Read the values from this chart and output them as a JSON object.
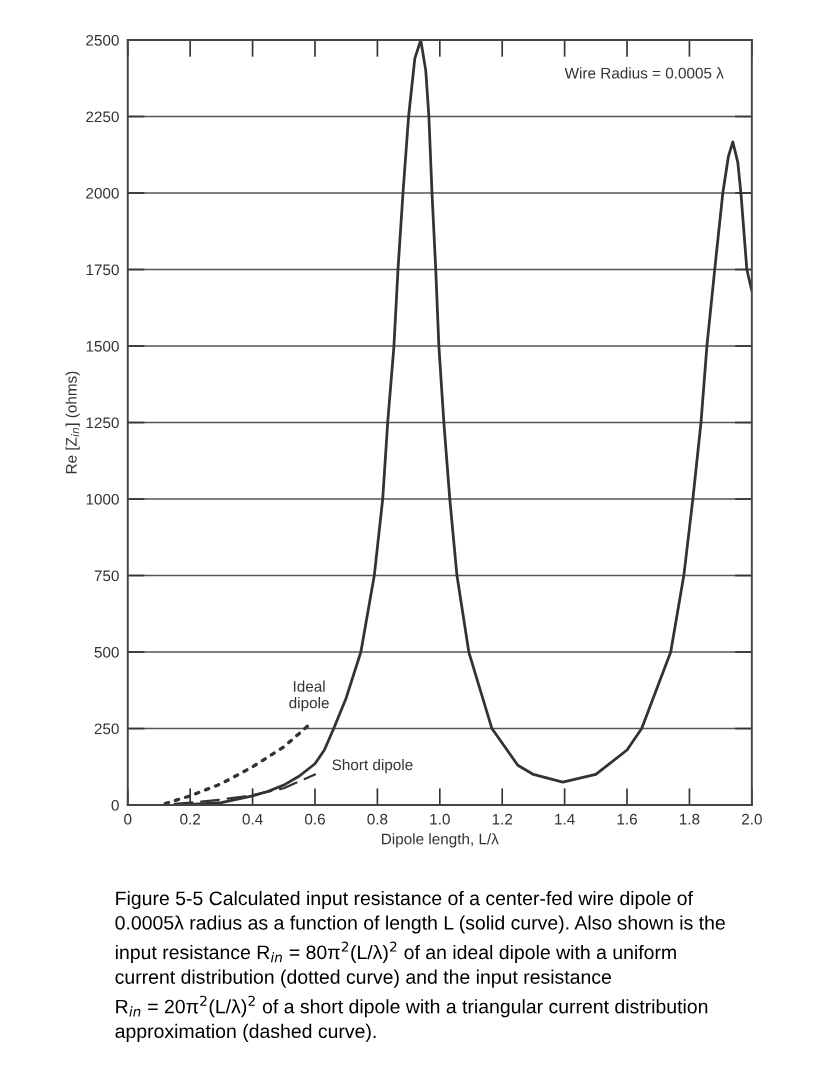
{
  "chart_data": {
    "type": "line",
    "xlabel": "Dipole length, L/λ",
    "ylabel": "Re [Z$_{in}$] (ohms)",
    "xlim": [
      0,
      2.0
    ],
    "xticks": [
      0,
      0.2,
      0.4,
      0.6,
      0.8,
      {
        "value": 1.0,
        "label": "1.0"
      },
      1.2,
      1.4,
      1.6,
      1.8,
      {
        "value": 2.0,
        "label": "2.0"
      }
    ],
    "ylim": [
      0,
      2500
    ],
    "yticks": [
      0,
      250,
      500,
      750,
      1000,
      1250,
      1500,
      1750,
      2000,
      2250,
      2500
    ],
    "grid": "y",
    "legend": false,
    "series": [
      {
        "color": "#333333",
        "line_style": "solid",
        "x": [
          0.15,
          0.2,
          0.3,
          0.4,
          0.45,
          0.5,
          0.55,
          0.6,
          0.63,
          0.66,
          0.7,
          0.747,
          0.79,
          0.817,
          0.833,
          0.853,
          0.866,
          0.882,
          0.9,
          0.92,
          0.939,
          0.955,
          0.965,
          0.975,
          0.987,
          0.997,
          1.013,
          1.032,
          1.055,
          1.093,
          1.167,
          1.25,
          1.3,
          1.394,
          1.5,
          1.6,
          1.647,
          1.74,
          1.782,
          1.811,
          1.837,
          1.856,
          1.881,
          1.907,
          1.925,
          1.939,
          1.955,
          1.965,
          1.984,
          2.0
        ],
        "values": [
          0,
          2,
          8,
          30,
          45,
          65,
          95,
          135,
          180,
          250,
          350,
          500,
          750,
          1000,
          1250,
          1500,
          1750,
          2000,
          2250,
          2440,
          2500,
          2400,
          2250,
          2000,
          1750,
          1500,
          1250,
          1000,
          750,
          500,
          250,
          130,
          100,
          75,
          100,
          180,
          250,
          500,
          750,
          1000,
          1250,
          1500,
          1750,
          2000,
          2120,
          2167,
          2100,
          2000,
          1750,
          1680
        ]
      },
      {
        "name": "Ideal\ndipole",
        "color": "#333333",
        "line_style": "dotted",
        "x": [
          0.12,
          0.2,
          0.3,
          0.4,
          0.5,
          0.59
        ],
        "values": [
          5,
          30,
          70,
          125,
          190,
          270
        ]
      },
      {
        "name": "Short dipole",
        "color": "#333333",
        "line_style": "dashed",
        "x": [
          0.15,
          0.2,
          0.3,
          0.4,
          0.5,
          0.6
        ],
        "values": [
          4,
          8,
          18,
          32,
          55,
          100
        ]
      }
    ],
    "annotations": [
      "Wire Radius = 0.0005 λ",
      "Figure 5-5 Calculated input resistance of a center-fed wire dipole of\n0.0005λ radius as a function of length L (solid curve). Also shown is the\ninput resistance R$_{in}$ = 80π$^{2}$(L/λ)$^{2}$ of an ideal dipole with a uniform\ncurrent distribution (dotted curve) and the input resistance\nR$_{in}$ = 20π$^{2}$(L/λ)$^{2}$ of a short dipole with a triangular current distribution\napproximation (dashed curve)."
    ]
  }
}
